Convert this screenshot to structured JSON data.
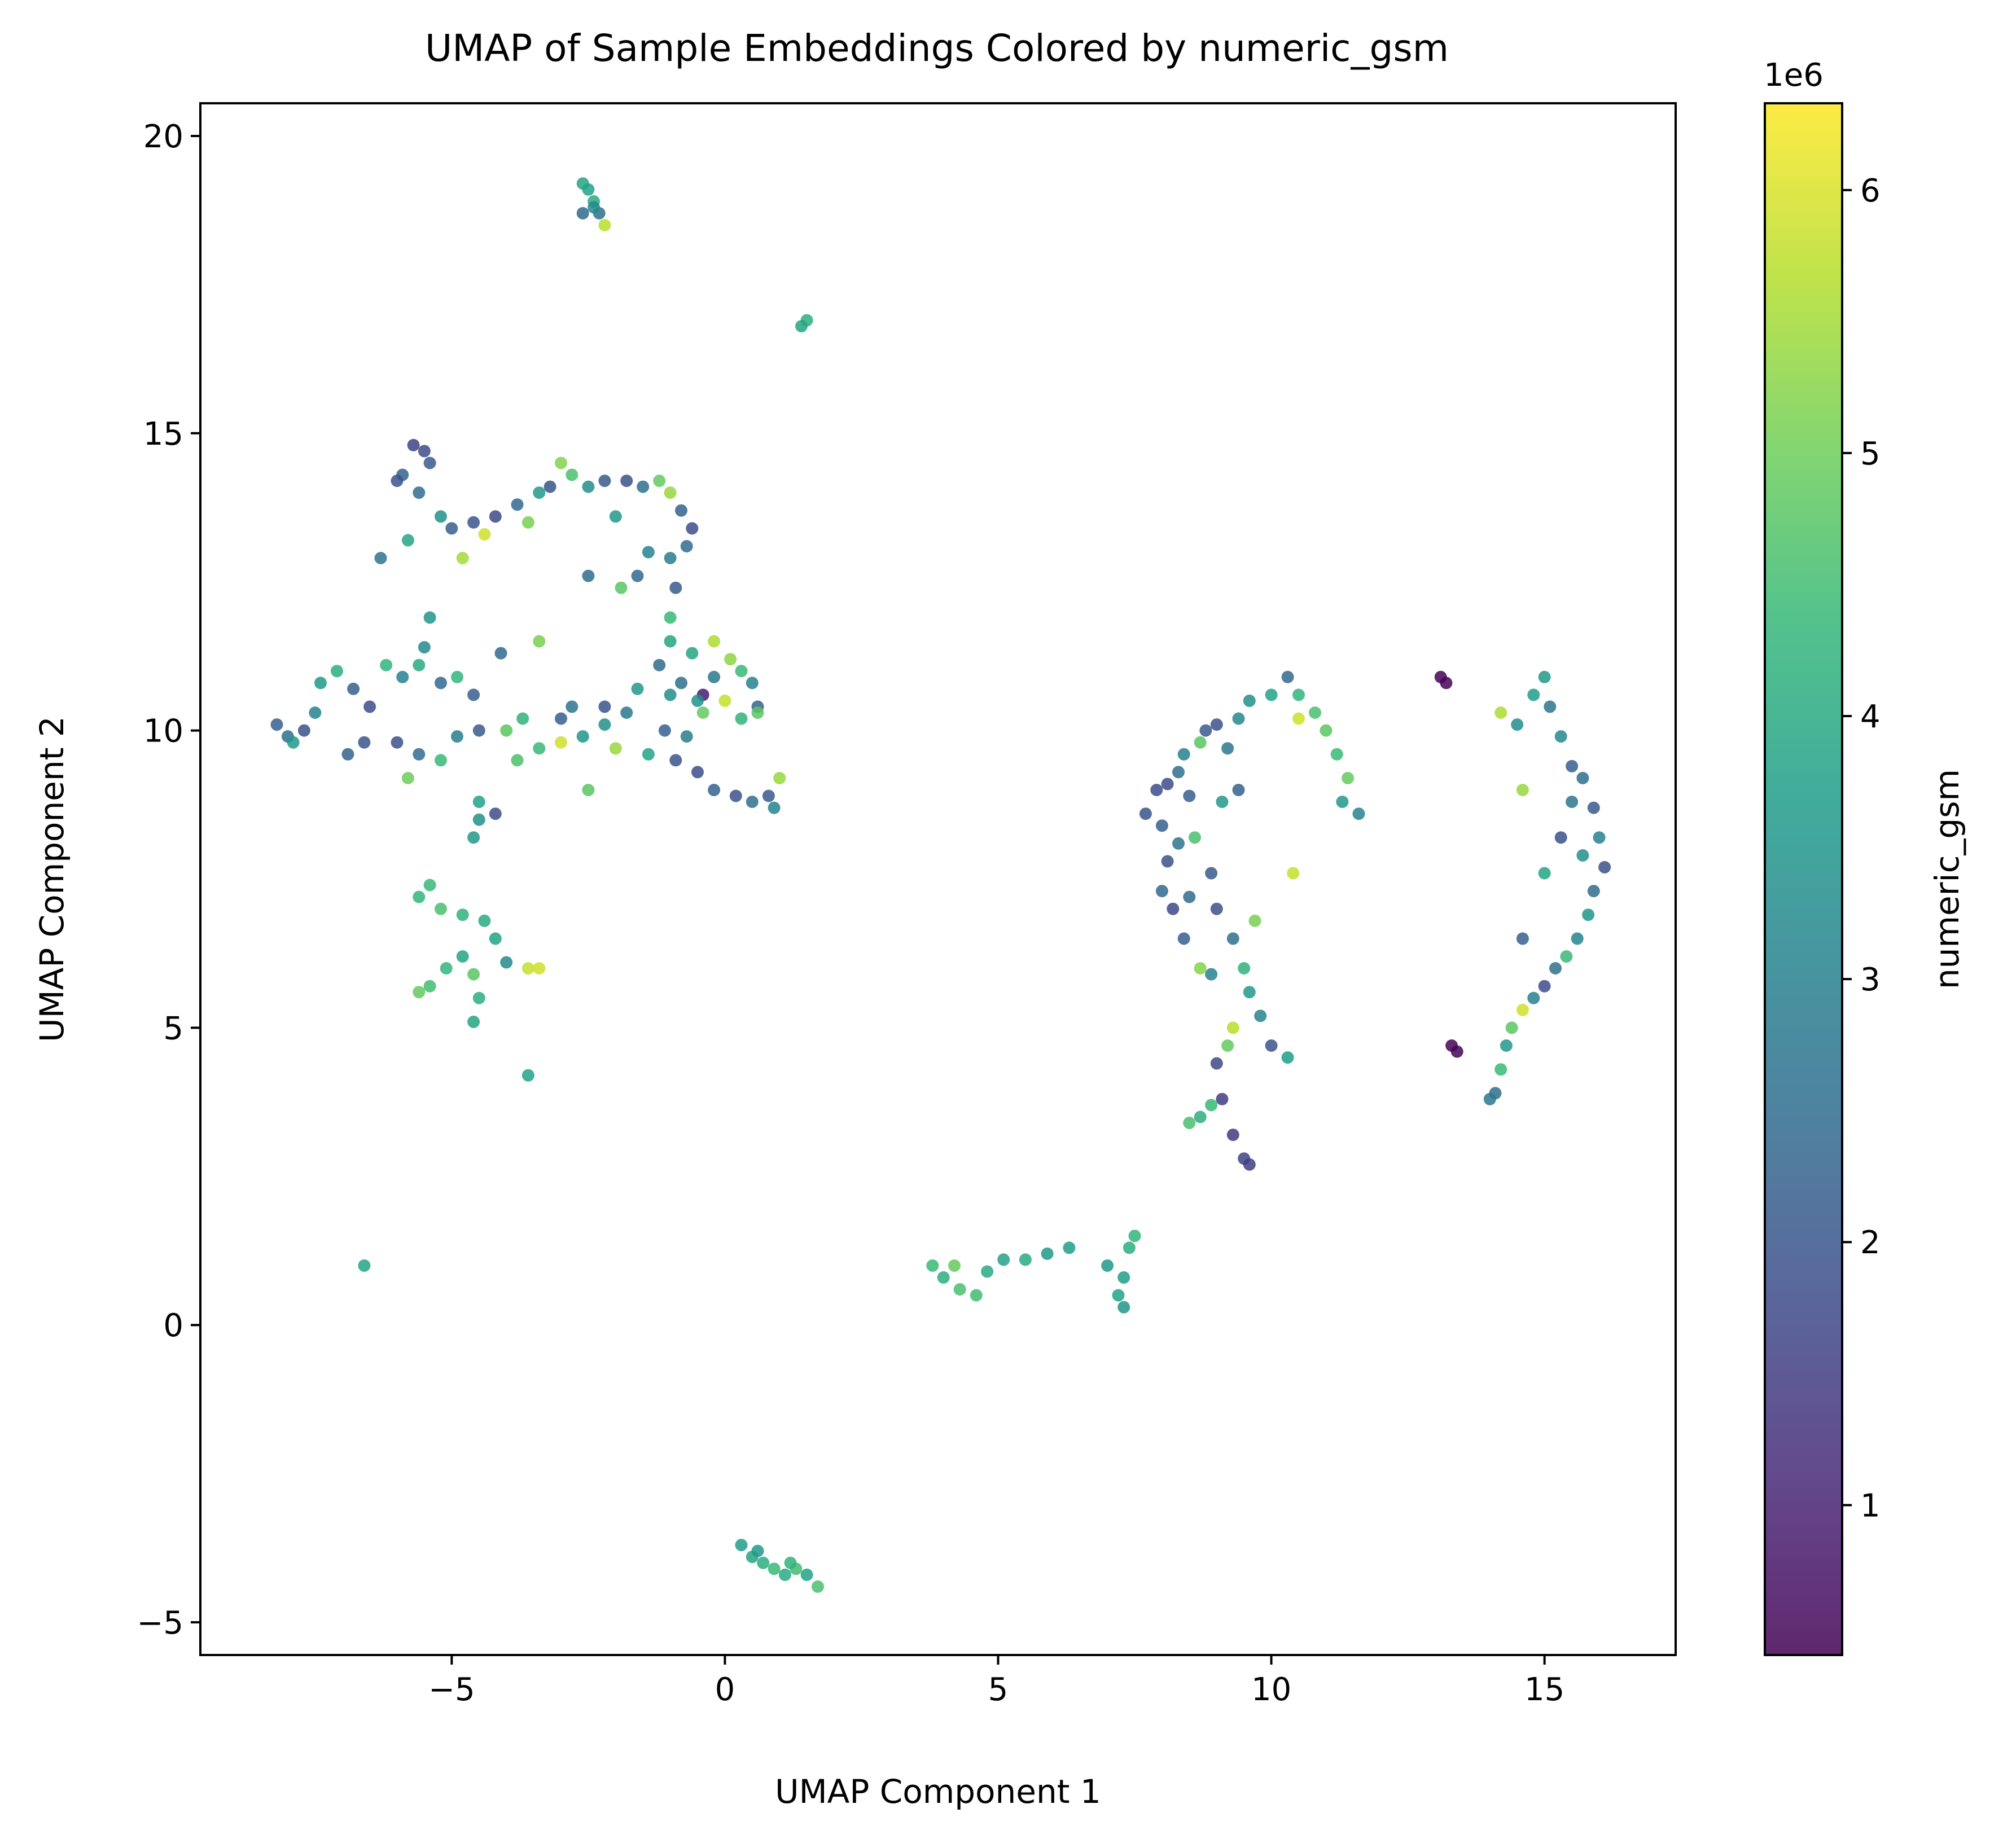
{
  "chart_data": {
    "type": "scatter",
    "title": "UMAP of Sample Embeddings Colored by numeric_gsm",
    "xlabel": "UMAP Component 1",
    "ylabel": "UMAP Component 2",
    "xlim": [
      -9.6,
      17.4
    ],
    "ylim": [
      -5.55,
      20.55
    ],
    "xticks": [
      -5,
      0,
      5,
      10,
      15
    ],
    "xtick_labels": [
      "−5",
      "0",
      "5",
      "10",
      "15"
    ],
    "yticks": [
      -5,
      0,
      5,
      10,
      15,
      20
    ],
    "ytick_labels": [
      "−5",
      "0",
      "5",
      "10",
      "15",
      "20"
    ],
    "grid": false,
    "legend": "none",
    "colorbar": {
      "label": "numeric_gsm",
      "offset_text": "1e6",
      "colormap": "viridis",
      "range": [
        0.43,
        6.33
      ],
      "ticks": [
        1,
        2,
        3,
        4,
        5,
        6
      ],
      "tick_labels": [
        "1",
        "2",
        "3",
        "4",
        "5",
        "6"
      ],
      "colors": [
        "#440154",
        "#482878",
        "#3e4989",
        "#31688e",
        "#26828e",
        "#1f9e89",
        "#35b779",
        "#6ece58",
        "#b5de2b",
        "#fde725"
      ]
    },
    "points": [
      [
        -2.6,
        19.2,
        3.9
      ],
      [
        -2.5,
        19.1,
        3.8
      ],
      [
        -2.4,
        18.9,
        4.0
      ],
      [
        -2.6,
        18.7,
        2.4
      ],
      [
        -2.3,
        18.7,
        2.6
      ],
      [
        -2.2,
        18.5,
        5.7
      ],
      [
        -2.4,
        18.8,
        3.2
      ],
      [
        1.5,
        16.9,
        4.1
      ],
      [
        1.4,
        16.8,
        3.9
      ],
      [
        -5.7,
        14.8,
        1.6
      ],
      [
        -5.5,
        14.7,
        1.8
      ],
      [
        -5.4,
        14.5,
        2.1
      ],
      [
        -5.9,
        14.3,
        2.3
      ],
      [
        -6.0,
        14.2,
        1.9
      ],
      [
        -5.6,
        14.0,
        2.5
      ],
      [
        -5.2,
        13.6,
        3.4
      ],
      [
        -5.0,
        13.4,
        2.2
      ],
      [
        -4.6,
        13.5,
        2.0
      ],
      [
        -4.2,
        13.6,
        1.7
      ],
      [
        -3.8,
        13.8,
        2.4
      ],
      [
        -3.4,
        14.0,
        3.6
      ],
      [
        -3.0,
        14.5,
        5.2
      ],
      [
        -2.8,
        14.3,
        4.6
      ],
      [
        -2.5,
        14.1,
        3.3
      ],
      [
        -2.2,
        14.2,
        2.1
      ],
      [
        -1.8,
        14.2,
        1.9
      ],
      [
        -1.5,
        14.1,
        2.6
      ],
      [
        -1.2,
        14.2,
        4.9
      ],
      [
        -1.0,
        14.0,
        5.4
      ],
      [
        -0.8,
        13.7,
        2.3
      ],
      [
        -0.6,
        13.4,
        1.8
      ],
      [
        -0.7,
        13.1,
        2.5
      ],
      [
        -1.0,
        12.9,
        2.9
      ],
      [
        -1.4,
        13.0,
        3.1
      ],
      [
        -1.6,
        12.6,
        2.4
      ],
      [
        -6.3,
        12.9,
        2.7
      ],
      [
        -5.8,
        13.2,
        3.9
      ],
      [
        -4.8,
        12.9,
        5.5
      ],
      [
        -3.6,
        13.5,
        5.1
      ],
      [
        -2.5,
        12.6,
        2.5
      ],
      [
        -1.9,
        12.4,
        4.8
      ],
      [
        -4.4,
        13.3,
        5.9
      ],
      [
        -3.2,
        14.1,
        2.0
      ],
      [
        -2.0,
        13.6,
        3.6
      ],
      [
        -0.9,
        12.4,
        2.1
      ],
      [
        -1.0,
        11.9,
        4.4
      ],
      [
        -1.0,
        11.5,
        3.9
      ],
      [
        -8.2,
        10.1,
        2.2
      ],
      [
        -8.0,
        9.9,
        2.6
      ],
      [
        -7.7,
        10.0,
        1.9
      ],
      [
        -7.5,
        10.3,
        3.1
      ],
      [
        -7.4,
        10.8,
        3.6
      ],
      [
        -7.1,
        11.0,
        4.1
      ],
      [
        -6.8,
        10.7,
        2.2
      ],
      [
        -6.5,
        10.4,
        1.8
      ],
      [
        -6.2,
        11.1,
        4.3
      ],
      [
        -5.9,
        10.9,
        3.0
      ],
      [
        -5.6,
        11.1,
        4.0
      ],
      [
        -5.4,
        11.9,
        3.5
      ],
      [
        -5.5,
        11.4,
        3.2
      ],
      [
        -5.2,
        10.8,
        2.4
      ],
      [
        -4.9,
        10.9,
        4.3
      ],
      [
        -4.6,
        10.6,
        2.2
      ],
      [
        -6.6,
        9.8,
        2.0
      ],
      [
        -6.0,
        9.8,
        1.9
      ],
      [
        -5.6,
        9.6,
        2.5
      ],
      [
        -5.8,
        9.2,
        5.0
      ],
      [
        -5.2,
        9.5,
        4.4
      ],
      [
        -4.9,
        9.9,
        2.9
      ],
      [
        -4.5,
        10.0,
        2.1
      ],
      [
        -4.0,
        10.0,
        4.8
      ],
      [
        -3.7,
        10.2,
        4.2
      ],
      [
        -3.8,
        9.5,
        4.6
      ],
      [
        -3.4,
        9.7,
        4.4
      ],
      [
        -3.0,
        9.8,
        5.9
      ],
      [
        -2.6,
        9.9,
        3.5
      ],
      [
        -2.2,
        10.1,
        3.4
      ],
      [
        -1.8,
        10.3,
        2.8
      ],
      [
        -1.6,
        10.7,
        3.6
      ],
      [
        -1.2,
        11.1,
        2.5
      ],
      [
        -1.0,
        10.6,
        3.3
      ],
      [
        -1.1,
        10.0,
        2.2
      ],
      [
        -0.9,
        9.5,
        2.0
      ],
      [
        -0.7,
        9.9,
        2.9
      ],
      [
        -0.4,
        10.3,
        4.9
      ],
      [
        -0.2,
        10.9,
        2.8
      ],
      [
        0.1,
        11.2,
        5.3
      ],
      [
        0.3,
        11.0,
        4.4
      ],
      [
        0.5,
        10.8,
        3.0
      ],
      [
        0.6,
        10.4,
        2.3
      ],
      [
        0.0,
        10.5,
        5.8
      ],
      [
        -0.4,
        10.6,
        0.9
      ],
      [
        -0.6,
        11.3,
        3.9
      ],
      [
        0.3,
        10.2,
        4.2
      ],
      [
        -0.5,
        9.3,
        1.8
      ],
      [
        -0.2,
        9.0,
        2.3
      ],
      [
        0.2,
        8.9,
        1.9
      ],
      [
        0.5,
        8.8,
        2.6
      ],
      [
        0.8,
        8.9,
        2.1
      ],
      [
        0.9,
        8.7,
        3.1
      ],
      [
        1.0,
        9.2,
        5.4
      ],
      [
        -2.5,
        9.0,
        4.8
      ],
      [
        -3.4,
        11.5,
        5.1
      ],
      [
        -2.8,
        10.4,
        2.7
      ],
      [
        -1.4,
        9.6,
        3.8
      ],
      [
        -0.2,
        11.5,
        5.6
      ],
      [
        -4.5,
        8.8,
        3.8
      ],
      [
        -4.5,
        8.5,
        3.4
      ],
      [
        -4.2,
        8.6,
        1.8
      ],
      [
        -4.6,
        8.2,
        3.6
      ],
      [
        -2.2,
        10.4,
        2.0
      ],
      [
        0.6,
        10.3,
        4.8
      ],
      [
        -7.9,
        9.8,
        3.6
      ],
      [
        -6.9,
        9.6,
        2.3
      ],
      [
        -4.1,
        11.3,
        2.4
      ],
      [
        -3.0,
        10.2,
        2.2
      ],
      [
        -2.0,
        9.7,
        5.4
      ],
      [
        -0.5,
        10.5,
        3.4
      ],
      [
        -0.8,
        10.8,
        2.6
      ],
      [
        -5.6,
        7.2,
        4.3
      ],
      [
        -5.4,
        7.4,
        4.4
      ],
      [
        -5.2,
        7.0,
        4.6
      ],
      [
        -4.8,
        6.9,
        4.2
      ],
      [
        -4.4,
        6.8,
        4.0
      ],
      [
        -4.2,
        6.5,
        3.8
      ],
      [
        -4.0,
        6.1,
        3.2
      ],
      [
        -3.6,
        6.0,
        5.8
      ],
      [
        -3.4,
        6.0,
        5.9
      ],
      [
        -4.8,
        6.2,
        3.9
      ],
      [
        -5.1,
        6.0,
        4.3
      ],
      [
        -4.6,
        5.9,
        4.8
      ],
      [
        -4.5,
        5.5,
        4.1
      ],
      [
        -4.6,
        5.1,
        3.9
      ],
      [
        -5.4,
        5.7,
        4.5
      ],
      [
        -5.6,
        5.6,
        4.9
      ],
      [
        -3.6,
        4.2,
        3.8
      ],
      [
        -6.6,
        1.0,
        3.9
      ],
      [
        3.8,
        1.0,
        4.4
      ],
      [
        4.0,
        0.8,
        4.1
      ],
      [
        4.3,
        0.6,
        4.6
      ],
      [
        4.6,
        0.5,
        4.5
      ],
      [
        4.8,
        0.9,
        4.0
      ],
      [
        5.1,
        1.1,
        3.8
      ],
      [
        5.5,
        1.1,
        4.0
      ],
      [
        5.9,
        1.2,
        3.6
      ],
      [
        6.3,
        1.3,
        3.7
      ],
      [
        4.2,
        1.0,
        4.9
      ],
      [
        7.0,
        1.0,
        3.6
      ],
      [
        7.3,
        0.8,
        3.7
      ],
      [
        7.3,
        0.3,
        3.5
      ],
      [
        7.2,
        0.5,
        3.8
      ],
      [
        7.5,
        1.5,
        4.3
      ],
      [
        7.4,
        1.3,
        4.1
      ],
      [
        0.3,
        -3.7,
        3.7
      ],
      [
        0.5,
        -3.9,
        3.9
      ],
      [
        0.7,
        -4.0,
        4.1
      ],
      [
        0.9,
        -4.1,
        4.4
      ],
      [
        1.1,
        -4.2,
        4.0
      ],
      [
        1.3,
        -4.1,
        4.5
      ],
      [
        1.5,
        -4.2,
        3.8
      ],
      [
        1.7,
        -4.4,
        4.6
      ],
      [
        1.2,
        -4.0,
        4.2
      ],
      [
        0.6,
        -3.8,
        3.6
      ],
      [
        7.7,
        8.6,
        2.0
      ],
      [
        7.9,
        9.0,
        1.8
      ],
      [
        8.0,
        8.4,
        2.2
      ],
      [
        8.1,
        7.8,
        1.9
      ],
      [
        8.0,
        7.3,
        2.4
      ],
      [
        8.2,
        7.0,
        1.7
      ],
      [
        8.3,
        9.3,
        2.6
      ],
      [
        8.4,
        9.6,
        3.0
      ],
      [
        8.5,
        8.9,
        2.2
      ],
      [
        8.7,
        9.8,
        4.8
      ],
      [
        8.8,
        10.0,
        2.1
      ],
      [
        9.0,
        10.1,
        1.9
      ],
      [
        9.2,
        9.7,
        2.8
      ],
      [
        9.4,
        10.2,
        3.2
      ],
      [
        9.6,
        10.5,
        3.4
      ],
      [
        10.0,
        10.6,
        3.8
      ],
      [
        10.3,
        10.9,
        2.4
      ],
      [
        10.5,
        10.6,
        4.3
      ],
      [
        10.8,
        10.3,
        4.6
      ],
      [
        11.0,
        10.0,
        4.8
      ],
      [
        11.2,
        9.6,
        4.4
      ],
      [
        11.4,
        9.2,
        4.9
      ],
      [
        11.3,
        8.8,
        3.6
      ],
      [
        11.6,
        8.6,
        3.1
      ],
      [
        10.5,
        10.2,
        5.9
      ],
      [
        10.4,
        7.6,
        5.8
      ],
      [
        8.6,
        8.2,
        4.6
      ],
      [
        8.9,
        7.6,
        2.1
      ],
      [
        9.0,
        7.0,
        1.9
      ],
      [
        9.3,
        6.5,
        2.6
      ],
      [
        9.5,
        6.0,
        4.2
      ],
      [
        9.6,
        5.6,
        3.6
      ],
      [
        9.8,
        5.2,
        3.1
      ],
      [
        10.0,
        4.7,
        2.0
      ],
      [
        10.3,
        4.5,
        3.7
      ],
      [
        9.7,
        6.8,
        5.1
      ],
      [
        9.3,
        5.0,
        5.7
      ],
      [
        9.2,
        4.7,
        4.9
      ],
      [
        9.0,
        4.4,
        1.7
      ],
      [
        9.1,
        3.8,
        1.5
      ],
      [
        9.3,
        3.2,
        1.4
      ],
      [
        9.5,
        2.8,
        1.6
      ],
      [
        9.6,
        2.7,
        1.5
      ],
      [
        8.9,
        3.7,
        4.4
      ],
      [
        8.7,
        3.5,
        4.1
      ],
      [
        8.5,
        3.4,
        4.6
      ],
      [
        8.4,
        6.5,
        2.2
      ],
      [
        8.7,
        6.0,
        5.2
      ],
      [
        8.9,
        5.9,
        3.0
      ],
      [
        9.1,
        8.8,
        3.6
      ],
      [
        8.3,
        8.1,
        2.7
      ],
      [
        8.5,
        7.2,
        2.5
      ],
      [
        9.4,
        9.0,
        2.2
      ],
      [
        8.1,
        9.1,
        1.8
      ],
      [
        13.2,
        10.8,
        0.5
      ],
      [
        13.1,
        10.9,
        0.5
      ],
      [
        13.4,
        4.6,
        0.5
      ],
      [
        13.3,
        4.7,
        0.5
      ],
      [
        14.2,
        10.3,
        5.6
      ],
      [
        14.5,
        10.1,
        3.3
      ],
      [
        14.8,
        10.6,
        3.7
      ],
      [
        15.0,
        10.9,
        3.6
      ],
      [
        15.1,
        10.4,
        2.7
      ],
      [
        15.3,
        9.9,
        3.2
      ],
      [
        15.5,
        9.4,
        2.2
      ],
      [
        15.7,
        9.2,
        2.6
      ],
      [
        15.9,
        8.7,
        2.1
      ],
      [
        16.0,
        8.2,
        3.0
      ],
      [
        16.1,
        7.7,
        1.9
      ],
      [
        15.9,
        7.3,
        2.5
      ],
      [
        15.8,
        6.9,
        3.5
      ],
      [
        15.6,
        6.5,
        3.1
      ],
      [
        15.4,
        6.2,
        4.4
      ],
      [
        15.2,
        6.0,
        2.6
      ],
      [
        15.0,
        5.7,
        1.8
      ],
      [
        14.8,
        5.5,
        3.0
      ],
      [
        14.6,
        5.3,
        5.9
      ],
      [
        14.4,
        5.0,
        4.8
      ],
      [
        14.3,
        4.7,
        3.6
      ],
      [
        14.2,
        4.3,
        4.4
      ],
      [
        14.1,
        3.9,
        2.6
      ],
      [
        14.0,
        3.8,
        2.8
      ],
      [
        14.6,
        6.5,
        2.2
      ],
      [
        14.6,
        9.0,
        5.4
      ],
      [
        15.3,
        8.2,
        1.9
      ],
      [
        15.0,
        7.6,
        3.9
      ],
      [
        15.5,
        8.8,
        2.7
      ],
      [
        15.7,
        7.9,
        3.4
      ]
    ]
  }
}
